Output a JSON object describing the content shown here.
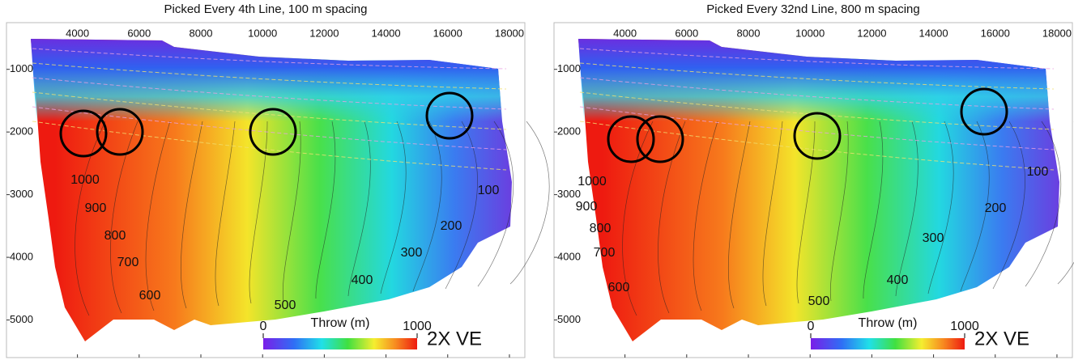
{
  "chart_data": [
    {
      "type": "contour",
      "title": "Picked Every 4th Line, 100 m spacing",
      "xlim": [
        1700,
        18500
      ],
      "xticks": [
        4000,
        6000,
        8000,
        10000,
        12000,
        14000,
        16000,
        18000
      ],
      "ylim": [
        255,
        5600
      ],
      "yticks": [
        1000,
        2000,
        3000,
        4000,
        5000
      ],
      "contour_labels": [
        1000,
        900,
        800,
        700,
        600,
        500,
        400,
        300,
        200,
        100
      ],
      "colorbar": {
        "label": "Throw (m)",
        "ticks": [
          0,
          1000
        ]
      },
      "annotation": "2X VE"
    },
    {
      "type": "contour",
      "title": "Picked Every 32nd Line, 800 m spacing",
      "xlim": [
        1700,
        18500
      ],
      "xticks": [
        4000,
        6000,
        8000,
        10000,
        12000,
        14000,
        16000,
        18000
      ],
      "ylim": [
        255,
        5600
      ],
      "yticks": [
        1000,
        2000,
        3000,
        4000,
        5000
      ],
      "contour_labels": [
        1000,
        900,
        800,
        700,
        600,
        500,
        400,
        300,
        200,
        100
      ],
      "colorbar": {
        "label": "Throw (m)",
        "ticks": [
          0,
          1000
        ]
      },
      "annotation": "2X VE"
    }
  ]
}
